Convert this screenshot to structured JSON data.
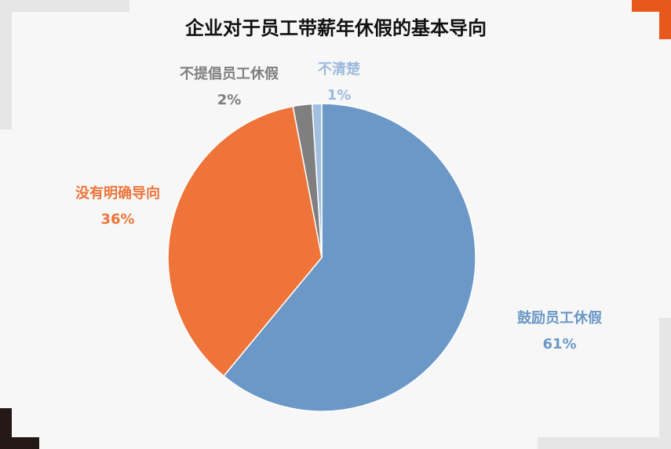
{
  "chart_data": {
    "type": "pie",
    "title": "企业对于员工带薪年休假的基本导向",
    "categories": [
      "鼓励员工休假",
      "没有明确导向",
      "不提倡员工休假",
      "不清楚"
    ],
    "values": [
      61,
      36,
      2,
      1
    ],
    "value_labels": [
      "61%",
      "36%",
      "2%",
      "1%"
    ],
    "colors": [
      "#6b98c6",
      "#ee743a",
      "#7f7f7f",
      "#a3bfe0"
    ],
    "label_colors": [
      "#6b98c6",
      "#ee743a",
      "#7f7f7f",
      "#9dbadf"
    ]
  }
}
